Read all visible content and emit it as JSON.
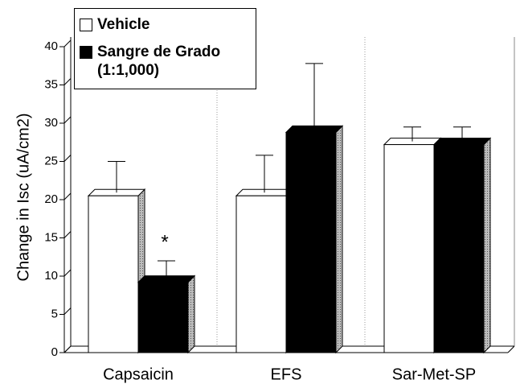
{
  "chart_data": {
    "type": "bar3d",
    "y_label": "Change in Isc (uA/cm2)",
    "categories": [
      "Capsaicin",
      "EFS",
      "Sar-Met-SP"
    ],
    "series": [
      {
        "name": "Vehicle",
        "color": "#ffffff",
        "values": [
          20.5,
          20.5,
          27.2
        ],
        "errors": [
          4.5,
          5.3,
          2.3
        ]
      },
      {
        "name": "Sangre de Grado (1:1,000)",
        "color": "#000000",
        "values": [
          9.2,
          28.8,
          27.2
        ],
        "errors": [
          2.8,
          9,
          2.3
        ]
      }
    ],
    "annotation": "*",
    "ylim": [
      0,
      40
    ],
    "yticks": [
      0,
      5,
      10,
      15,
      20,
      25,
      30,
      35,
      40
    ],
    "legend": "upper left"
  }
}
